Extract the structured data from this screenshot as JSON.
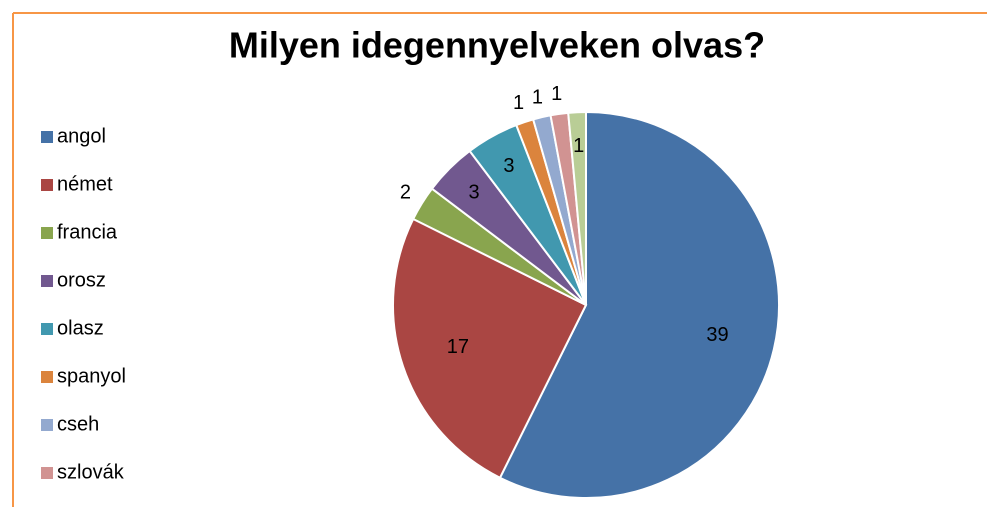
{
  "chart_data": {
    "type": "pie",
    "title": "Milyen idegennyelveken olvas?",
    "categories": [
      "angol",
      "német",
      "francia",
      "orosz",
      "olasz",
      "spanyol",
      "cseh",
      "szlovák",
      null
    ],
    "values": [
      39,
      17,
      2,
      3,
      3,
      1,
      1,
      1,
      1
    ],
    "colors": [
      "#4572a7",
      "#aa4643",
      "#89a54e",
      "#71588f",
      "#4198af",
      "#db843d",
      "#93a9cf",
      "#d19392",
      "#b9cd96"
    ],
    "legend": "left"
  }
}
